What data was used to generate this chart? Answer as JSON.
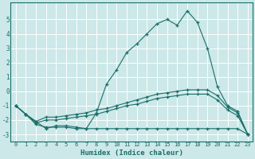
{
  "background_color": "#cce8e8",
  "grid_color": "#b8d8d8",
  "line_color": "#1a6e6a",
  "xlabel": "Humidex (Indice chaleur)",
  "xlim": [
    -0.5,
    23.5
  ],
  "ylim": [
    -3.5,
    6.2
  ],
  "yticks": [
    -3,
    -2,
    -1,
    0,
    1,
    2,
    3,
    4,
    5
  ],
  "xticks": [
    0,
    1,
    2,
    3,
    4,
    5,
    6,
    7,
    8,
    9,
    10,
    11,
    12,
    13,
    14,
    15,
    16,
    17,
    18,
    19,
    20,
    21,
    22,
    23
  ],
  "series_main_x": [
    0,
    1,
    2,
    3,
    4,
    5,
    6,
    7,
    8,
    9,
    10,
    11,
    12,
    13,
    14,
    15,
    16,
    17,
    18,
    19,
    20,
    21,
    22,
    23
  ],
  "series_main_y": [
    -1.0,
    -1.6,
    -2.1,
    -2.6,
    -2.4,
    -2.4,
    -2.5,
    -2.6,
    -1.5,
    0.5,
    1.5,
    2.7,
    3.3,
    4.0,
    4.7,
    5.0,
    4.6,
    5.6,
    4.8,
    3.0,
    0.3,
    -1.0,
    -1.4,
    -3.0
  ],
  "series_a_x": [
    0,
    1,
    2,
    3,
    4,
    5,
    6,
    7,
    8,
    9,
    10,
    11,
    12,
    13,
    14,
    15,
    16,
    17,
    18,
    19,
    20,
    21,
    22,
    23
  ],
  "series_a_y": [
    -1.0,
    -1.6,
    -2.1,
    -1.8,
    -1.8,
    -1.7,
    -1.6,
    -1.5,
    -1.3,
    -1.2,
    -1.0,
    -0.8,
    -0.6,
    -0.4,
    -0.2,
    -0.1,
    0.0,
    0.1,
    0.1,
    0.1,
    -0.3,
    -1.1,
    -1.5,
    -3.0
  ],
  "series_b_x": [
    0,
    1,
    2,
    3,
    4,
    5,
    6,
    7,
    8,
    9,
    10,
    11,
    12,
    13,
    14,
    15,
    16,
    17,
    18,
    19,
    20,
    21,
    22,
    23
  ],
  "series_b_y": [
    -1.0,
    -1.6,
    -2.2,
    -2.0,
    -2.0,
    -1.9,
    -1.8,
    -1.7,
    -1.6,
    -1.4,
    -1.2,
    -1.0,
    -0.9,
    -0.7,
    -0.5,
    -0.4,
    -0.3,
    -0.2,
    -0.2,
    -0.2,
    -0.6,
    -1.3,
    -1.7,
    -3.0
  ],
  "series_c_x": [
    0,
    1,
    2,
    3,
    4,
    5,
    6,
    7,
    8,
    9,
    10,
    11,
    12,
    13,
    14,
    15,
    16,
    17,
    18,
    19,
    20,
    21,
    22,
    23
  ],
  "series_c_y": [
    -1.0,
    -1.6,
    -2.3,
    -2.5,
    -2.5,
    -2.5,
    -2.6,
    -2.6,
    -2.6,
    -2.6,
    -2.6,
    -2.6,
    -2.6,
    -2.6,
    -2.6,
    -2.6,
    -2.6,
    -2.6,
    -2.6,
    -2.6,
    -2.6,
    -2.6,
    -2.6,
    -3.0
  ]
}
